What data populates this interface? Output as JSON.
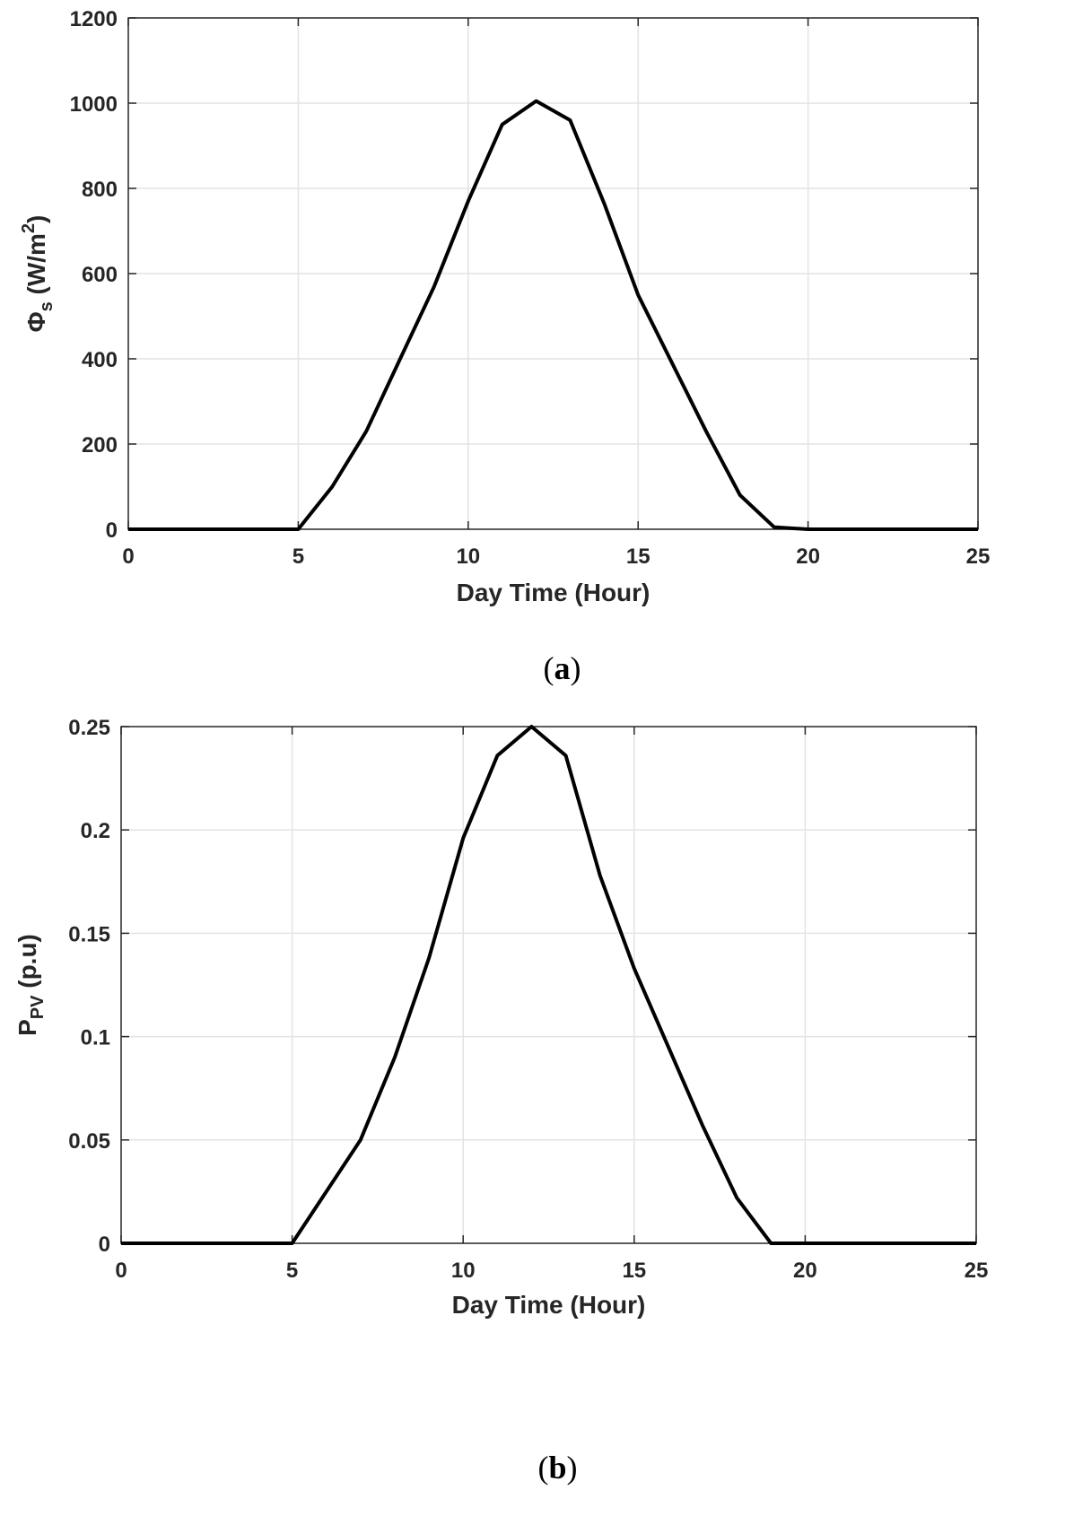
{
  "chart_data": [
    {
      "type": "line",
      "panel": "a",
      "caption_letter": "a",
      "xlabel": "Day Time (Hour)",
      "ylabel": {
        "symbol": "Φ",
        "sub": "s",
        "unit_pre": " (W/m",
        "sup": "2",
        "unit_post": ")"
      },
      "xlim": [
        0,
        25
      ],
      "ylim": [
        0,
        1200
      ],
      "xticks": [
        0,
        5,
        10,
        15,
        20,
        25
      ],
      "yticks": [
        0,
        200,
        400,
        600,
        800,
        1000,
        1200
      ],
      "xticklabels": [
        "0",
        "5",
        "10",
        "15",
        "20",
        "25"
      ],
      "yticklabels": [
        "0",
        "200",
        "400",
        "600",
        "800",
        "1000",
        "1200"
      ],
      "grid": true,
      "x": [
        0,
        1,
        2,
        3,
        4,
        5,
        6,
        7,
        8,
        9,
        10,
        11,
        12,
        13,
        14,
        15,
        16,
        17,
        18,
        19,
        20,
        21,
        22,
        23,
        24,
        25
      ],
      "y": [
        0,
        0,
        0,
        0,
        0,
        0,
        100,
        230,
        400,
        570,
        770,
        950,
        1005,
        960,
        765,
        550,
        390,
        230,
        80,
        5,
        0,
        0,
        0,
        0,
        0,
        0
      ]
    },
    {
      "type": "line",
      "panel": "b",
      "caption_letter": "b",
      "xlabel": "Day Time (Hour)",
      "ylabel": {
        "symbol": "P",
        "sub": "PV",
        "unit_pre": " (p.u)",
        "sup": "",
        "unit_post": ""
      },
      "xlim": [
        0,
        25
      ],
      "ylim": [
        0,
        0.25
      ],
      "xticks": [
        0,
        5,
        10,
        15,
        20,
        25
      ],
      "yticks": [
        0,
        0.05,
        0.1,
        0.15,
        0.2,
        0.25
      ],
      "xticklabels": [
        "0",
        "5",
        "10",
        "15",
        "20",
        "25"
      ],
      "yticklabels": [
        "0",
        "0.05",
        "0.1",
        "0.15",
        "0.2",
        "0.25"
      ],
      "grid": true,
      "x": [
        0,
        1,
        2,
        3,
        4,
        5,
        6,
        7,
        8,
        9,
        10,
        11,
        12,
        13,
        14,
        15,
        16,
        17,
        18,
        19,
        20,
        21,
        22,
        23,
        24,
        25
      ],
      "y": [
        0,
        0,
        0,
        0,
        0,
        0,
        0.025,
        0.05,
        0.09,
        0.138,
        0.196,
        0.236,
        0.25,
        0.236,
        0.178,
        0.133,
        0.095,
        0.057,
        0.022,
        0,
        0,
        0,
        0,
        0,
        0,
        0
      ]
    }
  ]
}
